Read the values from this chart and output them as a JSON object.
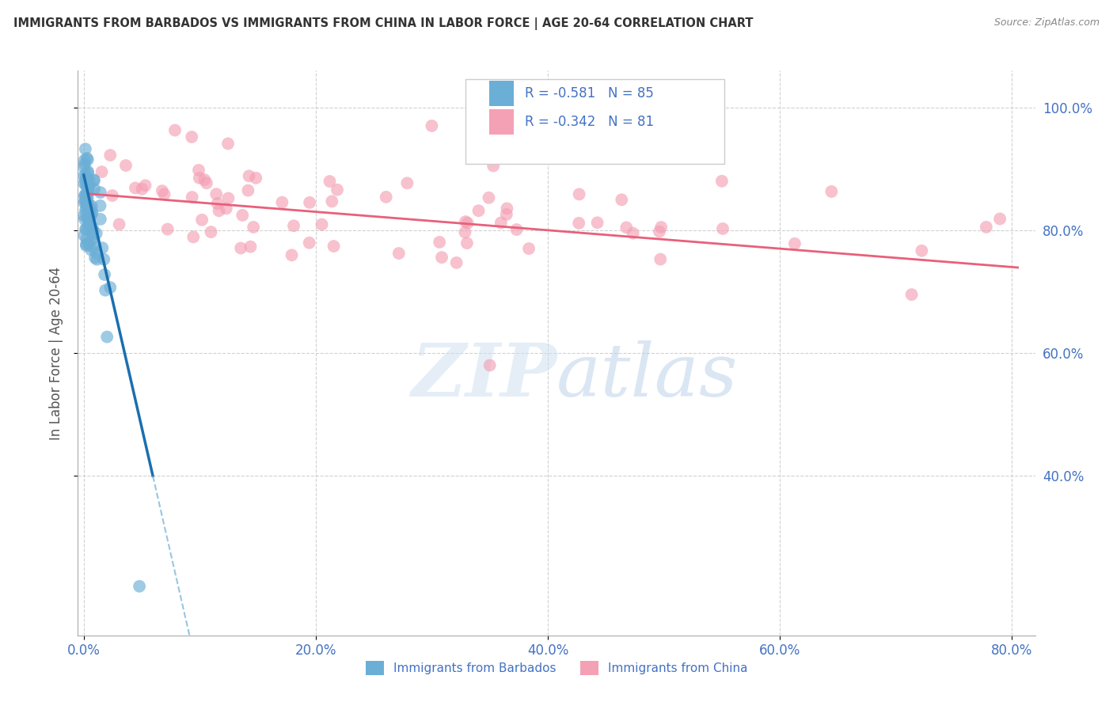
{
  "title": "IMMIGRANTS FROM BARBADOS VS IMMIGRANTS FROM CHINA IN LABOR FORCE | AGE 20-64 CORRELATION CHART",
  "source": "Source: ZipAtlas.com",
  "ylabel": "In Labor Force | Age 20-64",
  "xlabel": "",
  "xlim": [
    -0.005,
    0.82
  ],
  "ylim": [
    0.14,
    1.06
  ],
  "yticks": [
    0.4,
    0.6,
    0.8,
    1.0
  ],
  "ytick_labels": [
    "40.0%",
    "60.0%",
    "80.0%",
    "100.0%"
  ],
  "xticks": [
    0.0,
    0.2,
    0.4,
    0.6,
    0.8
  ],
  "xtick_labels": [
    "0.0%",
    "20.0%",
    "40.0%",
    "60.0%",
    "80.0%"
  ],
  "barbados_R": -0.581,
  "barbados_N": 85,
  "china_R": -0.342,
  "china_N": 81,
  "barbados_color": "#6baed6",
  "china_color": "#f4a0b5",
  "barbados_line_solid_color": "#1a6faf",
  "barbados_line_dashed_color": "#6baed6",
  "china_line_color": "#e8607a",
  "legend_label_barbados": "Immigrants from Barbados",
  "legend_label_china": "Immigrants from China",
  "watermark_zip": "ZIP",
  "watermark_atlas": "atlas",
  "background_color": "#ffffff",
  "grid_color": "#cccccc",
  "title_color": "#333333",
  "axis_label_color": "#555555",
  "tick_color": "#4472c4"
}
